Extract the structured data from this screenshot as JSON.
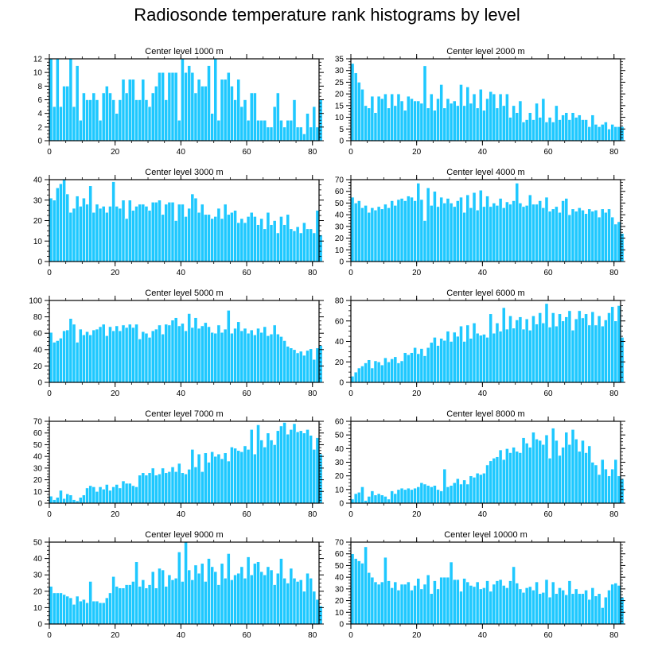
{
  "figure": {
    "title": "Radiosonde temperature rank histograms by level"
  },
  "colors": {
    "bar": "#1ec8ff",
    "bar_edge": "#ffffff",
    "axis": "#000000"
  },
  "chart_data": [
    {
      "type": "bar",
      "title": "Center level 1000 m",
      "xlim": [
        0,
        82
      ],
      "ylim": [
        0,
        12
      ],
      "xticks": [
        0,
        20,
        40,
        60,
        80
      ],
      "yticks": [
        0,
        2,
        4,
        6,
        8,
        10,
        12
      ],
      "x_start": 0,
      "values": [
        12,
        5,
        12,
        5,
        8,
        8,
        12,
        5,
        11,
        3,
        7,
        6,
        6,
        7,
        6,
        3,
        7,
        8,
        7,
        6,
        4,
        6,
        9,
        7,
        9,
        9,
        6,
        6,
        9,
        6,
        5,
        7,
        8,
        10,
        10,
        6,
        10,
        10,
        10,
        3,
        12,
        10,
        11,
        10,
        7,
        9,
        8,
        8,
        11,
        4,
        12,
        3,
        9,
        9,
        10,
        8,
        6,
        9,
        5,
        6,
        3,
        7,
        7,
        3,
        3,
        3,
        2,
        2,
        5,
        7,
        3,
        2,
        3,
        3,
        6,
        2,
        2,
        1,
        4,
        2,
        5,
        2,
        6
      ]
    },
    {
      "type": "bar",
      "title": "Center level 2000 m",
      "xlim": [
        0,
        82
      ],
      "ylim": [
        0,
        35
      ],
      "xticks": [
        0,
        20,
        40,
        60,
        80
      ],
      "yticks": [
        0,
        5,
        10,
        15,
        20,
        25,
        30,
        35
      ],
      "x_start": 0,
      "values": [
        33,
        29,
        25,
        22,
        15,
        14,
        19,
        12,
        19,
        18,
        20,
        14,
        20,
        15,
        20,
        17,
        13,
        19,
        18,
        17,
        17,
        16,
        32,
        14,
        20,
        13,
        18,
        24,
        14,
        18,
        16,
        17,
        15,
        24,
        15,
        23,
        16,
        20,
        14,
        22,
        13,
        18,
        21,
        20,
        14,
        20,
        15,
        20,
        10,
        15,
        12,
        17,
        8,
        9,
        12,
        9,
        16,
        10,
        18,
        8,
        10,
        8,
        15,
        9,
        11,
        12,
        9,
        12,
        10,
        11,
        9,
        9,
        6,
        11,
        7,
        6,
        7,
        8,
        5,
        7,
        6,
        6,
        6
      ]
    },
    {
      "type": "bar",
      "title": "Center level 3000 m",
      "xlim": [
        0,
        82
      ],
      "ylim": [
        0,
        40
      ],
      "xticks": [
        0,
        20,
        40,
        60,
        80
      ],
      "yticks": [
        0,
        10,
        20,
        30,
        40
      ],
      "x_start": 0,
      "values": [
        31,
        30,
        36,
        38,
        40,
        33,
        24,
        26,
        32,
        27,
        31,
        28,
        37,
        24,
        28,
        26,
        27,
        24,
        27,
        39,
        27,
        26,
        30,
        21,
        30,
        25,
        27,
        28,
        28,
        27,
        25,
        29,
        29,
        30,
        23,
        28,
        29,
        29,
        20,
        28,
        28,
        22,
        26,
        33,
        31,
        24,
        28,
        23,
        23,
        21,
        22,
        26,
        21,
        28,
        23,
        24,
        25,
        19,
        21,
        19,
        22,
        24,
        22,
        18,
        21,
        16,
        24,
        18,
        20,
        14,
        22,
        18,
        23,
        16,
        15,
        17,
        14,
        19,
        16,
        16,
        14,
        25,
        13
      ]
    },
    {
      "type": "bar",
      "title": "Center level 4000 m",
      "xlim": [
        0,
        82
      ],
      "ylim": [
        0,
        70
      ],
      "xticks": [
        0,
        20,
        40,
        60,
        80
      ],
      "yticks": [
        0,
        10,
        20,
        30,
        40,
        50,
        60,
        70
      ],
      "x_start": 0,
      "values": [
        55,
        50,
        52,
        46,
        48,
        42,
        46,
        44,
        47,
        45,
        49,
        46,
        52,
        48,
        53,
        54,
        52,
        56,
        55,
        52,
        67,
        53,
        35,
        63,
        48,
        60,
        47,
        55,
        50,
        54,
        50,
        47,
        52,
        55,
        42,
        57,
        46,
        59,
        44,
        61,
        47,
        56,
        47,
        50,
        48,
        54,
        46,
        51,
        49,
        52,
        67,
        50,
        47,
        48,
        57,
        49,
        49,
        52,
        46,
        55,
        43,
        45,
        47,
        42,
        52,
        54,
        40,
        45,
        43,
        46,
        44,
        41,
        45,
        43,
        44,
        38,
        45,
        42,
        45,
        38,
        32,
        34,
        24
      ]
    },
    {
      "type": "bar",
      "title": "Center level 5000 m",
      "xlim": [
        0,
        82
      ],
      "ylim": [
        0,
        100
      ],
      "xticks": [
        0,
        20,
        40,
        60,
        80
      ],
      "yticks": [
        0,
        20,
        40,
        60,
        80,
        100
      ],
      "x_start": 0,
      "values": [
        61,
        49,
        51,
        54,
        63,
        64,
        78,
        71,
        49,
        65,
        58,
        62,
        58,
        64,
        65,
        68,
        71,
        57,
        68,
        63,
        69,
        63,
        70,
        67,
        71,
        67,
        71,
        53,
        62,
        60,
        55,
        63,
        65,
        70,
        59,
        71,
        70,
        76,
        79,
        69,
        72,
        63,
        84,
        67,
        79,
        66,
        69,
        73,
        68,
        61,
        60,
        70,
        61,
        65,
        88,
        60,
        66,
        74,
        63,
        66,
        60,
        64,
        58,
        66,
        61,
        68,
        57,
        59,
        70,
        59,
        56,
        51,
        44,
        42,
        40,
        36,
        38,
        33,
        39,
        41,
        28,
        42,
        45
      ]
    },
    {
      "type": "bar",
      "title": "Center level 6000 m",
      "xlim": [
        0,
        82
      ],
      "ylim": [
        0,
        80
      ],
      "xticks": [
        0,
        20,
        40,
        60,
        80
      ],
      "yticks": [
        0,
        20,
        40,
        60,
        80
      ],
      "x_start": 0,
      "values": [
        6,
        10,
        14,
        16,
        19,
        22,
        14,
        21,
        20,
        17,
        24,
        20,
        23,
        25,
        19,
        21,
        29,
        27,
        29,
        34,
        28,
        33,
        26,
        34,
        39,
        44,
        36,
        43,
        41,
        50,
        40,
        49,
        45,
        55,
        40,
        56,
        43,
        58,
        48,
        46,
        47,
        44,
        67,
        48,
        58,
        50,
        73,
        52,
        65,
        53,
        61,
        64,
        52,
        62,
        51,
        65,
        57,
        68,
        58,
        77,
        54,
        68,
        55,
        67,
        60,
        64,
        70,
        51,
        62,
        70,
        63,
        67,
        56,
        69,
        56,
        65,
        55,
        61,
        68,
        74,
        60,
        75,
        44
      ]
    },
    {
      "type": "bar",
      "title": "Center level 7000 m",
      "xlim": [
        0,
        82
      ],
      "ylim": [
        0,
        70
      ],
      "xticks": [
        0,
        20,
        40,
        60,
        80
      ],
      "yticks": [
        0,
        10,
        20,
        30,
        40,
        50,
        60,
        70
      ],
      "x_start": 0,
      "values": [
        6,
        3,
        5,
        11,
        4,
        8,
        7,
        3,
        2,
        5,
        7,
        13,
        15,
        14,
        10,
        14,
        12,
        16,
        11,
        14,
        16,
        13,
        19,
        17,
        17,
        15,
        14,
        24,
        26,
        24,
        26,
        30,
        24,
        25,
        30,
        26,
        27,
        31,
        27,
        34,
        26,
        25,
        29,
        46,
        31,
        42,
        27,
        43,
        35,
        44,
        40,
        42,
        38,
        43,
        36,
        48,
        47,
        45,
        44,
        49,
        46,
        63,
        42,
        67,
        54,
        48,
        60,
        54,
        50,
        62,
        66,
        69,
        59,
        63,
        68,
        61,
        62,
        60,
        63,
        58,
        46,
        56,
        42
      ]
    },
    {
      "type": "bar",
      "title": "Center level 8000 m",
      "xlim": [
        0,
        82
      ],
      "ylim": [
        0,
        60
      ],
      "xticks": [
        0,
        20,
        40,
        60,
        80
      ],
      "yticks": [
        0,
        10,
        20,
        30,
        40,
        50,
        60
      ],
      "x_start": 0,
      "values": [
        3,
        7,
        8,
        12,
        2,
        5,
        9,
        6,
        7,
        6,
        5,
        3,
        9,
        7,
        10,
        11,
        10,
        11,
        10,
        11,
        12,
        15,
        14,
        13,
        12,
        13,
        10,
        9,
        25,
        12,
        13,
        15,
        18,
        14,
        17,
        14,
        20,
        19,
        22,
        21,
        22,
        28,
        31,
        33,
        34,
        39,
        32,
        40,
        37,
        41,
        38,
        37,
        48,
        44,
        41,
        52,
        47,
        46,
        43,
        50,
        33,
        55,
        46,
        35,
        41,
        52,
        43,
        54,
        47,
        38,
        46,
        37,
        42,
        30,
        28,
        21,
        32,
        25,
        20,
        25,
        32,
        20,
        18
      ]
    },
    {
      "type": "bar",
      "title": "Center level 9000 m",
      "xlim": [
        0,
        82
      ],
      "ylim": [
        0,
        50
      ],
      "xticks": [
        0,
        20,
        40,
        60,
        80
      ],
      "yticks": [
        0,
        10,
        20,
        30,
        40,
        50
      ],
      "x_start": 0,
      "values": [
        23,
        19,
        19,
        19,
        18,
        17,
        16,
        12,
        17,
        14,
        15,
        13,
        26,
        14,
        14,
        13,
        13,
        16,
        19,
        29,
        23,
        22,
        22,
        24,
        24,
        26,
        38,
        23,
        27,
        22,
        24,
        32,
        22,
        34,
        33,
        23,
        30,
        27,
        28,
        44,
        26,
        50,
        33,
        27,
        36,
        31,
        37,
        26,
        40,
        35,
        32,
        24,
        37,
        28,
        43,
        27,
        30,
        31,
        35,
        28,
        41,
        30,
        37,
        38,
        32,
        30,
        35,
        33,
        24,
        31,
        40,
        28,
        25,
        34,
        28,
        26,
        27,
        20,
        31,
        28,
        20,
        15,
        11
      ]
    },
    {
      "type": "bar",
      "title": "Center level 10000 m",
      "xlim": [
        0,
        82
      ],
      "ylim": [
        0,
        70
      ],
      "xticks": [
        0,
        20,
        40,
        60,
        80
      ],
      "yticks": [
        0,
        10,
        20,
        30,
        40,
        50,
        60,
        70
      ],
      "x_start": 0,
      "values": [
        60,
        56,
        54,
        52,
        66,
        44,
        40,
        36,
        34,
        36,
        57,
        37,
        31,
        36,
        29,
        34,
        34,
        36,
        29,
        33,
        39,
        30,
        34,
        42,
        26,
        37,
        30,
        40,
        40,
        40,
        53,
        38,
        38,
        28,
        39,
        36,
        33,
        32,
        36,
        30,
        31,
        37,
        28,
        34,
        37,
        38,
        33,
        31,
        37,
        49,
        35,
        30,
        27,
        31,
        32,
        29,
        36,
        26,
        27,
        38,
        23,
        36,
        26,
        31,
        29,
        25,
        37,
        26,
        30,
        26,
        26,
        29,
        21,
        31,
        24,
        26,
        14,
        23,
        29,
        34,
        35,
        33,
        23
      ]
    }
  ]
}
